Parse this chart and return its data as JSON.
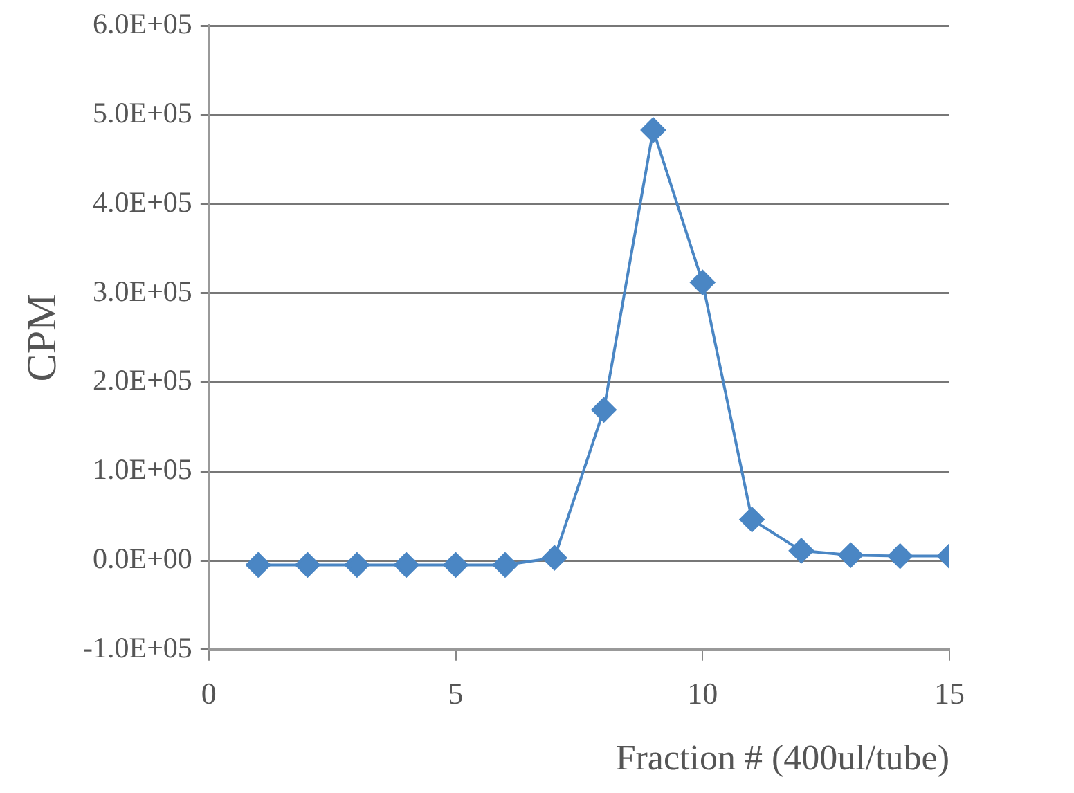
{
  "chart_data": {
    "type": "line",
    "xlabel": "Fraction # (400ul/tube)",
    "ylabel": "CPM",
    "x": [
      1,
      2,
      3,
      4,
      5,
      6,
      7,
      8,
      9,
      10,
      11,
      12,
      13,
      14,
      15
    ],
    "series": [
      {
        "color": "#4a86c4",
        "values": [
          -5000,
          -5000,
          -5000,
          -5000,
          -5000,
          -5000,
          3000,
          169000,
          483000,
          312000,
          46000,
          11000,
          6000,
          5000,
          5000
        ]
      }
    ],
    "xlim": [
      0,
      15
    ],
    "xticks": [
      0,
      5,
      10,
      15
    ],
    "ylim": [
      -100000,
      600000
    ],
    "yticks": [
      {
        "value": -100000,
        "label": "-1.0E+05"
      },
      {
        "value": 0,
        "label": "0.0E+00"
      },
      {
        "value": 100000,
        "label": "1.0E+05"
      },
      {
        "value": 200000,
        "label": "2.0E+05"
      },
      {
        "value": 300000,
        "label": "3.0E+05"
      },
      {
        "value": 400000,
        "label": "4.0E+05"
      },
      {
        "value": 500000,
        "label": "5.0E+05"
      },
      {
        "value": 600000,
        "label": "6.0E+05"
      }
    ],
    "grid": "y",
    "legend": false,
    "marker": "diamond",
    "line_style": "solid"
  }
}
